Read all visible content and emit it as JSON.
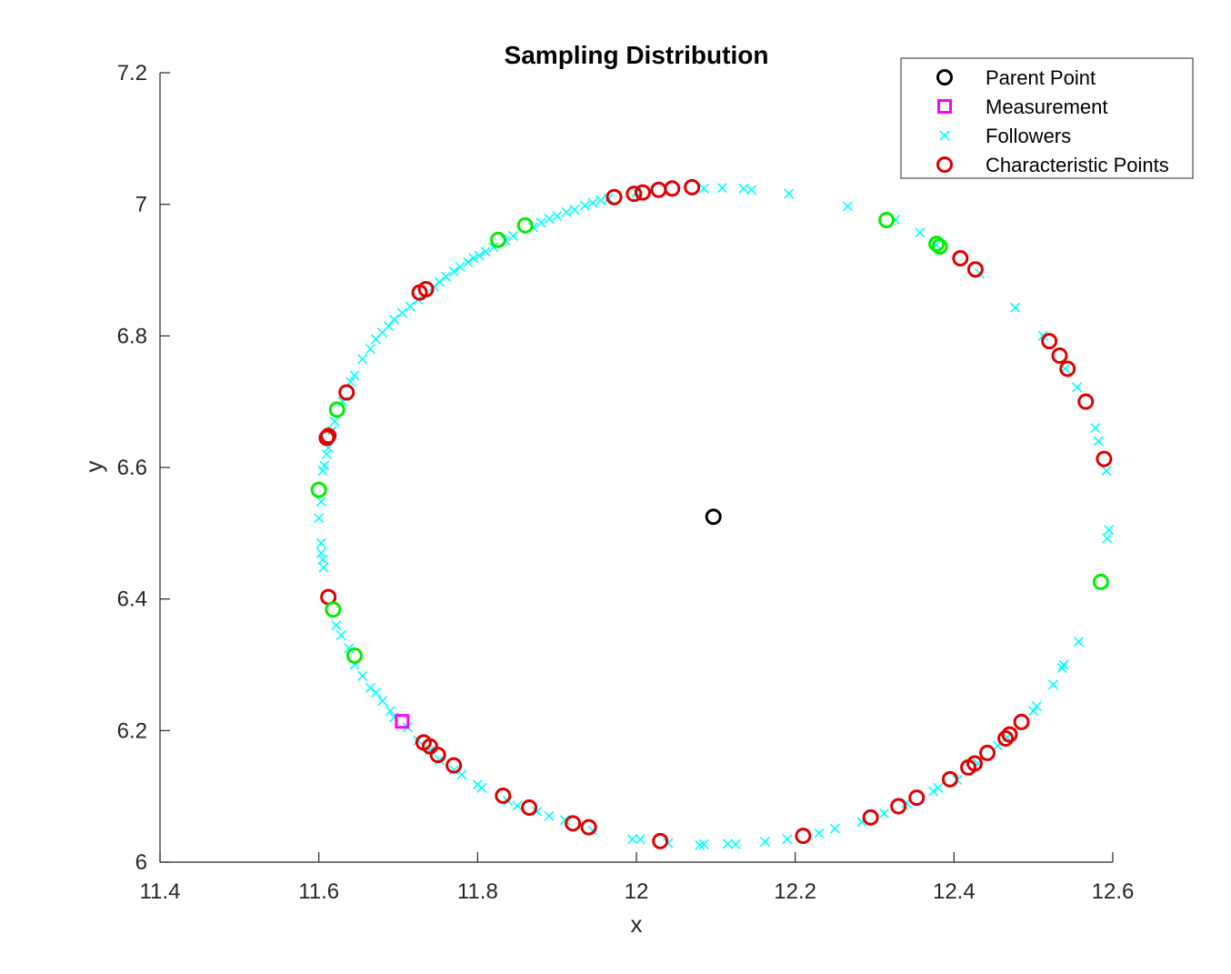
{
  "chart_data": {
    "type": "scatter",
    "title": "Sampling Distribution",
    "xlabel": "x",
    "ylabel": "y",
    "xlim": [
      11.4,
      12.6
    ],
    "ylim": [
      6.0,
      7.2
    ],
    "xticks": [
      "11.4",
      "11.6",
      "11.8",
      "12",
      "12.2",
      "12.4",
      "12.6"
    ],
    "yticks": [
      "6",
      "6.2",
      "6.4",
      "6.6",
      "6.8",
      "7",
      "7.2"
    ],
    "grid": false,
    "legend_position": "top-right",
    "series": [
      {
        "name": "Parent Point",
        "marker": "circle",
        "color": "#000000",
        "points": [
          [
            12.097,
            6.525
          ]
        ]
      },
      {
        "name": "Measurement",
        "marker": "square",
        "color": "#ff00ff",
        "points": [
          [
            11.705,
            6.214
          ]
        ]
      },
      {
        "name": "Followers",
        "marker": "x",
        "color": "#00ffff",
        "points": [
          [
            11.6,
            6.523
          ],
          [
            11.603,
            6.485
          ],
          [
            11.603,
            6.47
          ],
          [
            11.605,
            6.46
          ],
          [
            11.606,
            6.448
          ],
          [
            11.603,
            6.548
          ],
          [
            11.605,
            6.595
          ],
          [
            11.607,
            6.603
          ],
          [
            11.61,
            6.62
          ],
          [
            11.612,
            6.63
          ],
          [
            11.617,
            6.656
          ],
          [
            11.62,
            6.67
          ],
          [
            11.63,
            6.7
          ],
          [
            11.64,
            6.73
          ],
          [
            11.645,
            6.74
          ],
          [
            11.655,
            6.765
          ],
          [
            11.665,
            6.78
          ],
          [
            11.672,
            6.795
          ],
          [
            11.68,
            6.805
          ],
          [
            11.688,
            6.815
          ],
          [
            11.695,
            6.825
          ],
          [
            11.705,
            6.835
          ],
          [
            11.715,
            6.845
          ],
          [
            11.725,
            6.855
          ],
          [
            11.745,
            6.875
          ],
          [
            11.752,
            6.882
          ],
          [
            11.76,
            6.89
          ],
          [
            11.77,
            6.898
          ],
          [
            11.778,
            6.905
          ],
          [
            11.788,
            6.912
          ],
          [
            11.795,
            6.918
          ],
          [
            11.802,
            6.922
          ],
          [
            11.81,
            6.928
          ],
          [
            11.82,
            6.935
          ],
          [
            11.835,
            6.945
          ],
          [
            11.845,
            6.952
          ],
          [
            11.87,
            6.965
          ],
          [
            11.88,
            6.972
          ],
          [
            11.89,
            6.978
          ],
          [
            11.9,
            6.982
          ],
          [
            11.912,
            6.988
          ],
          [
            11.922,
            6.992
          ],
          [
            11.935,
            6.998
          ],
          [
            11.945,
            7.002
          ],
          [
            11.955,
            7.006
          ],
          [
            11.965,
            7.009
          ],
          [
            12.0,
            7.018
          ],
          [
            12.085,
            7.024
          ],
          [
            12.108,
            7.025
          ],
          [
            12.135,
            7.024
          ],
          [
            12.145,
            7.022
          ],
          [
            12.192,
            7.016
          ],
          [
            12.266,
            6.997
          ],
          [
            12.326,
            6.977
          ],
          [
            12.357,
            6.957
          ],
          [
            12.378,
            6.938
          ],
          [
            12.432,
            6.895
          ],
          [
            12.477,
            6.843
          ],
          [
            12.512,
            6.8
          ],
          [
            12.54,
            6.75
          ],
          [
            12.555,
            6.722
          ],
          [
            12.578,
            6.66
          ],
          [
            12.582,
            6.64
          ],
          [
            12.592,
            6.595
          ],
          [
            12.595,
            6.505
          ],
          [
            12.593,
            6.492
          ],
          [
            12.557,
            6.335
          ],
          [
            12.538,
            6.3
          ],
          [
            12.536,
            6.295
          ],
          [
            12.525,
            6.27
          ],
          [
            12.504,
            6.237
          ],
          [
            12.5,
            6.23
          ],
          [
            12.467,
            6.19
          ],
          [
            12.455,
            6.177
          ],
          [
            12.43,
            6.15
          ],
          [
            12.404,
            6.125
          ],
          [
            12.38,
            6.113
          ],
          [
            12.374,
            6.108
          ],
          [
            12.34,
            6.09
          ],
          [
            12.312,
            6.074
          ],
          [
            12.284,
            6.061
          ],
          [
            12.25,
            6.051
          ],
          [
            12.23,
            6.044
          ],
          [
            12.19,
            6.035
          ],
          [
            12.162,
            6.031
          ],
          [
            12.125,
            6.027
          ],
          [
            12.115,
            6.028
          ],
          [
            12.085,
            6.027
          ],
          [
            12.08,
            6.026
          ],
          [
            12.04,
            6.029
          ],
          [
            12.005,
            6.035
          ],
          [
            11.995,
            6.035
          ],
          [
            11.945,
            6.048
          ],
          [
            11.91,
            6.064
          ],
          [
            11.89,
            6.07
          ],
          [
            11.875,
            6.077
          ],
          [
            11.85,
            6.086
          ],
          [
            11.838,
            6.093
          ],
          [
            11.805,
            6.113
          ],
          [
            11.8,
            6.118
          ],
          [
            11.78,
            6.133
          ],
          [
            11.77,
            6.14
          ],
          [
            11.752,
            6.155
          ],
          [
            11.74,
            6.17
          ],
          [
            11.725,
            6.185
          ],
          [
            11.712,
            6.205
          ],
          [
            11.695,
            6.22
          ],
          [
            11.69,
            6.23
          ],
          [
            11.68,
            6.245
          ],
          [
            11.672,
            6.258
          ],
          [
            11.665,
            6.265
          ],
          [
            11.655,
            6.283
          ],
          [
            11.645,
            6.3
          ],
          [
            11.638,
            6.325
          ],
          [
            11.628,
            6.345
          ],
          [
            11.622,
            6.36
          ]
        ]
      },
      {
        "name": "Characteristic Points",
        "marker": "circle",
        "color": "#e00000",
        "points": [
          [
            11.61,
            6.645
          ],
          [
            11.612,
            6.648
          ],
          [
            11.635,
            6.714
          ],
          [
            11.727,
            6.866
          ],
          [
            11.735,
            6.871
          ],
          [
            11.972,
            7.011
          ],
          [
            11.997,
            7.016
          ],
          [
            12.008,
            7.018
          ],
          [
            12.028,
            7.022
          ],
          [
            12.045,
            7.024
          ],
          [
            12.07,
            7.026
          ],
          [
            12.408,
            6.918
          ],
          [
            12.427,
            6.901
          ],
          [
            12.52,
            6.792
          ],
          [
            12.533,
            6.77
          ],
          [
            12.543,
            6.75
          ],
          [
            12.566,
            6.7
          ],
          [
            12.589,
            6.613
          ],
          [
            11.612,
            6.403
          ],
          [
            11.732,
            6.182
          ],
          [
            11.74,
            6.176
          ],
          [
            11.75,
            6.163
          ],
          [
            11.77,
            6.147
          ],
          [
            11.832,
            6.101
          ],
          [
            11.865,
            6.083
          ],
          [
            11.92,
            6.059
          ],
          [
            11.94,
            6.053
          ],
          [
            12.03,
            6.032
          ],
          [
            12.21,
            6.04
          ],
          [
            12.295,
            6.068
          ],
          [
            12.33,
            6.085
          ],
          [
            12.353,
            6.098
          ],
          [
            12.395,
            6.126
          ],
          [
            12.418,
            6.144
          ],
          [
            12.426,
            6.15
          ],
          [
            12.442,
            6.166
          ],
          [
            12.465,
            6.188
          ],
          [
            12.47,
            6.194
          ],
          [
            12.485,
            6.213
          ]
        ]
      },
      {
        "name": "",
        "marker": "circle",
        "color": "#00ee00",
        "points": [
          [
            11.6,
            6.566
          ],
          [
            11.623,
            6.688
          ],
          [
            11.826,
            6.946
          ],
          [
            11.86,
            6.968
          ],
          [
            12.315,
            6.976
          ],
          [
            12.378,
            6.94
          ],
          [
            12.382,
            6.936
          ],
          [
            12.585,
            6.426
          ],
          [
            11.618,
            6.384
          ],
          [
            11.645,
            6.314
          ]
        ]
      }
    ]
  }
}
